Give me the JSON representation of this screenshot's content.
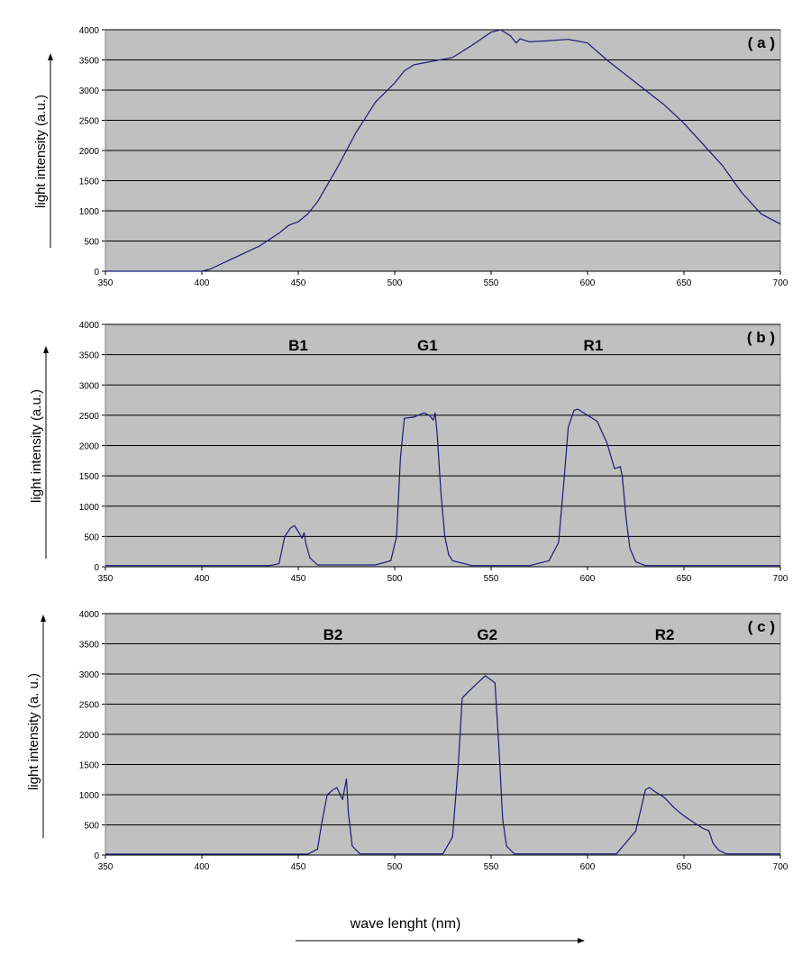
{
  "chart_data": [
    {
      "type": "line",
      "panel_label": "( a )",
      "ylabel": "light intensity (a.u.)",
      "xlim": [
        350,
        700
      ],
      "ylim": [
        0,
        4000
      ],
      "xticks": [
        350,
        400,
        450,
        500,
        550,
        600,
        650,
        700
      ],
      "yticks": [
        0,
        500,
        1000,
        1500,
        2000,
        2500,
        3000,
        3500,
        4000
      ],
      "grid": true,
      "peak_labels": [],
      "series": [
        {
          "color": "#1a1a7a",
          "x": [
            350,
            395,
            400,
            404,
            410,
            420,
            430,
            440,
            445,
            450,
            455,
            460,
            470,
            480,
            490,
            500,
            505,
            510,
            520,
            530,
            540,
            550,
            555,
            560,
            563,
            565,
            570,
            580,
            590,
            600,
            610,
            620,
            630,
            640,
            650,
            660,
            670,
            680,
            690,
            700
          ],
          "y": [
            0,
            0,
            0,
            30,
            120,
            270,
            420,
            630,
            760,
            820,
            950,
            1150,
            1700,
            2300,
            2800,
            3120,
            3320,
            3420,
            3480,
            3540,
            3740,
            3960,
            4000,
            3900,
            3780,
            3850,
            3800,
            3820,
            3840,
            3780,
            3500,
            3250,
            3000,
            2750,
            2450,
            2100,
            1750,
            1300,
            950,
            780
          ]
        }
      ]
    },
    {
      "type": "line",
      "panel_label": "( b )",
      "ylabel": "light intensity (a.u.)",
      "xlim": [
        350,
        700
      ],
      "ylim": [
        0,
        4000
      ],
      "xticks": [
        350,
        400,
        450,
        500,
        550,
        600,
        650,
        700
      ],
      "yticks": [
        0,
        500,
        1000,
        1500,
        2000,
        2500,
        3000,
        3500,
        4000
      ],
      "grid": true,
      "peak_labels": [
        {
          "text": "B1",
          "x": 450
        },
        {
          "text": "G1",
          "x": 517
        },
        {
          "text": "R1",
          "x": 603
        }
      ],
      "series": [
        {
          "color": "#1a1a7a",
          "x": [
            350,
            435,
            440,
            443,
            446,
            448,
            450,
            452,
            453,
            454,
            456,
            460,
            490,
            498,
            501,
            503,
            505,
            510,
            515,
            518,
            520,
            521,
            522,
            524,
            526,
            528,
            530,
            540,
            570,
            580,
            585,
            588,
            590,
            593,
            595,
            600,
            605,
            610,
            614,
            617,
            618,
            620,
            622,
            625,
            630,
            700
          ],
          "y": [
            20,
            20,
            50,
            500,
            640,
            680,
            580,
            470,
            560,
            380,
            150,
            30,
            30,
            100,
            500,
            1800,
            2450,
            2470,
            2540,
            2500,
            2420,
            2540,
            2200,
            1200,
            500,
            200,
            100,
            20,
            20,
            100,
            400,
            1500,
            2300,
            2580,
            2600,
            2500,
            2400,
            2050,
            1620,
            1650,
            1500,
            800,
            300,
            80,
            20,
            20
          ]
        }
      ]
    },
    {
      "type": "line",
      "panel_label": "( c )",
      "ylabel": "light intensity (a. u.)",
      "xlim": [
        350,
        700
      ],
      "ylim": [
        0,
        4000
      ],
      "xticks": [
        350,
        400,
        450,
        500,
        550,
        600,
        650,
        700
      ],
      "yticks": [
        0,
        500,
        1000,
        1500,
        2000,
        2500,
        3000,
        3500,
        4000
      ],
      "grid": true,
      "peak_labels": [
        {
          "text": "B2",
          "x": 468
        },
        {
          "text": "G2",
          "x": 548
        },
        {
          "text": "R2",
          "x": 640
        }
      ],
      "series": [
        {
          "color": "#1a1a7a",
          "x": [
            350,
            455,
            460,
            462,
            465,
            468,
            470,
            472,
            473,
            474,
            475,
            476,
            478,
            482,
            525,
            530,
            533,
            535,
            538,
            543,
            547,
            550,
            552,
            554,
            556,
            558,
            562,
            615,
            625,
            628,
            630,
            632,
            635,
            640,
            645,
            650,
            655,
            660,
            663,
            665,
            668,
            672,
            700
          ],
          "y": [
            15,
            15,
            100,
            500,
            1000,
            1080,
            1120,
            980,
            920,
            1100,
            1260,
            700,
            150,
            20,
            20,
            300,
            1500,
            2600,
            2700,
            2850,
            2970,
            2900,
            2850,
            1800,
            600,
            150,
            20,
            20,
            400,
            800,
            1080,
            1120,
            1050,
            950,
            780,
            650,
            540,
            440,
            400,
            200,
            80,
            20,
            20
          ]
        }
      ]
    }
  ],
  "shared_xlabel": "wave lenght (nm)"
}
